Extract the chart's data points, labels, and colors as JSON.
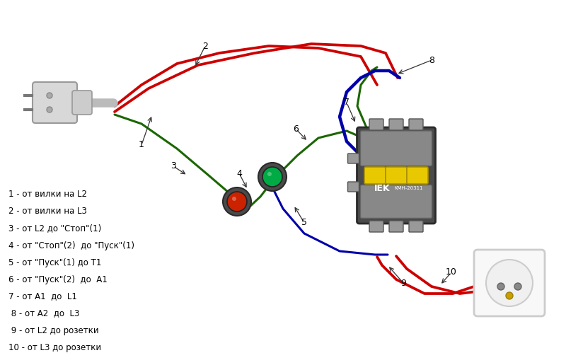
{
  "background_color": "#e8e8e8",
  "wire_colors": {
    "red": "#cc0000",
    "green": "#1a6600",
    "blue": "#0000aa",
    "gray": "#aaaaaa"
  },
  "legend_items": [
    "1 - от вилки на L2",
    "2 - от вилки на L3",
    "3 - от L2 до \"Стоп\"(1)",
    "4 - от \"Стоп\"(2)  до \"Пуск\"(1)",
    "5 - от \"Пуск\"(1) до T1",
    "6 - от \"Пуск\"(2)  до  A1",
    "7 - от A1  до  L1",
    " 8 - от A2  до  L3",
    " 9 - от L2 до розетки",
    "10 - от L3 до розетки"
  ],
  "figsize": [
    8.0,
    4.99
  ],
  "dpi": 100
}
